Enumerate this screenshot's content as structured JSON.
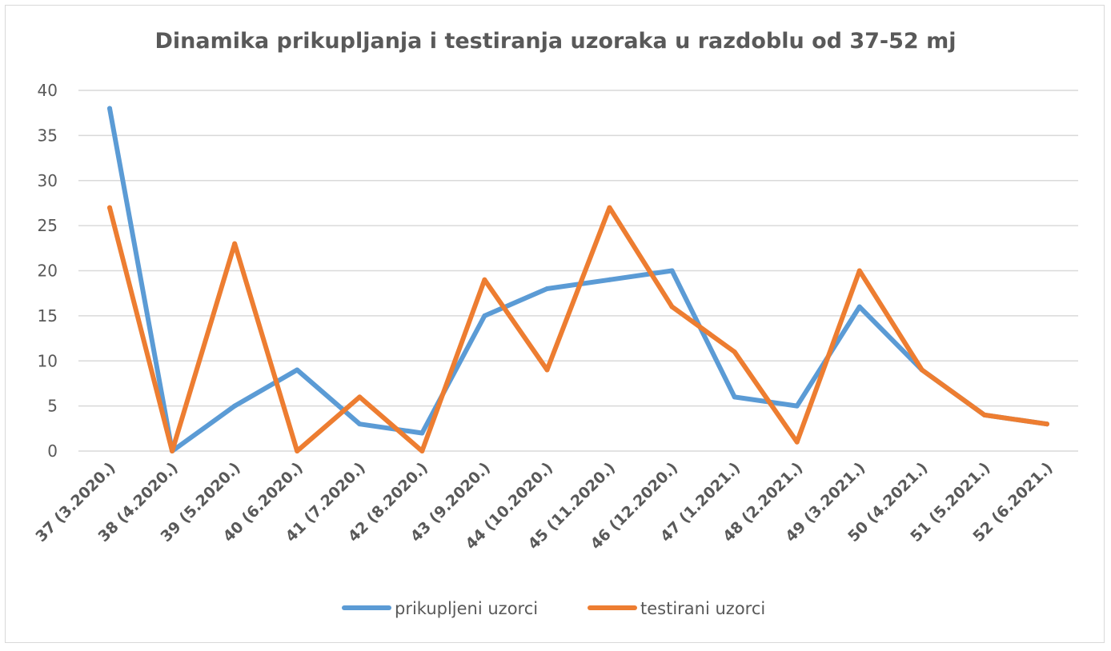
{
  "chart_data": {
    "type": "line",
    "title": "Dinamika prikupljanja i testiranja uzoraka u razdoblu od 37-52 mj",
    "xlabel": "",
    "ylabel": "",
    "ylim": [
      0,
      40
    ],
    "yticks": [
      0,
      5,
      10,
      15,
      20,
      25,
      30,
      35,
      40
    ],
    "grid": true,
    "legend_position": "bottom",
    "categories": [
      "37 (3.2020.)",
      "38 (4.2020.)",
      "39 (5.2020.)",
      "40 (6.2020.)",
      "41 (7.2020.)",
      "42 (8.2020.)",
      "43 (9.2020.)",
      "44 (10.2020.)",
      "45 (11.2020.)",
      "46 (12.2020.)",
      "47 (1.2021.)",
      "48 (2.2021.)",
      "49 (3.2021.)",
      "50 (4.2021.)",
      "51 (5.2021.)",
      "52 (6.2021.)"
    ],
    "series": [
      {
        "name": "prikupljeni uzorci",
        "color": "#5b9bd5",
        "values": [
          38,
          0,
          5,
          9,
          3,
          2,
          15,
          18,
          19,
          20,
          6,
          5,
          16,
          9,
          4,
          3
        ]
      },
      {
        "name": "testirani uzorci",
        "color": "#ed7d31",
        "values": [
          27,
          0,
          23,
          0,
          6,
          0,
          19,
          9,
          27,
          16,
          11,
          1,
          20,
          9,
          4,
          3
        ]
      }
    ]
  }
}
